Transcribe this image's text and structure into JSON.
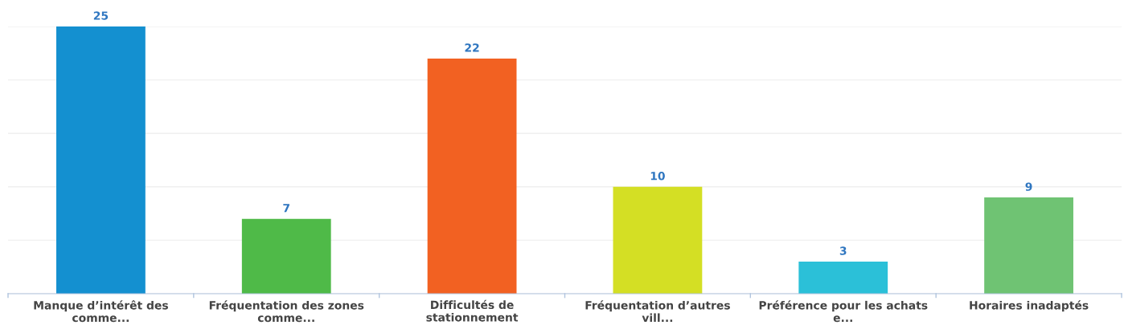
{
  "chart_data": {
    "type": "bar",
    "categories": [
      "Manque d’intérêt des\ncomme...",
      "Fréquentation des zones\ncomme...",
      "Difficultés de\nstationnement",
      "Fréquentation d’autres\nvill...",
      "Préférence pour les achats\ne...",
      "Horaires inadaptés"
    ],
    "values": [
      25,
      7,
      22,
      10,
      3,
      9
    ],
    "colors": [
      "#1490d0",
      "#4fba48",
      "#f26122",
      "#d4df24",
      "#2bc0d8",
      "#6fc373"
    ],
    "ylim": [
      0,
      25
    ],
    "yticks": [
      {
        "value": 0,
        "label": null
      },
      {
        "value": 5,
        "label": null
      },
      {
        "value": 10,
        "label": null
      },
      {
        "value": 15,
        "label": null
      },
      {
        "value": 20,
        "label": null
      },
      {
        "value": 25,
        "label": null
      }
    ],
    "grid": "y",
    "data_labels": true,
    "tick_labels": "x"
  }
}
